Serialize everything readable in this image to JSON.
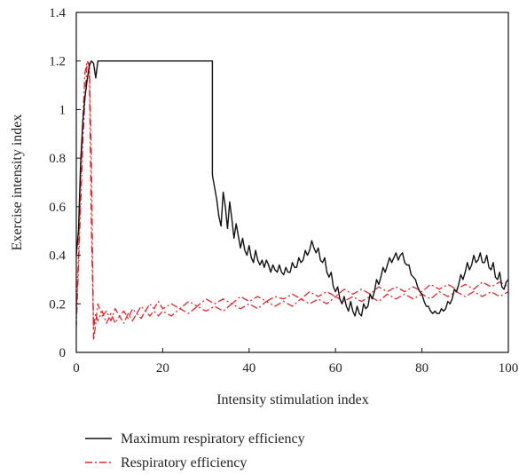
{
  "chart_data": {
    "type": "line",
    "xlabel": "Intensity stimulation index",
    "ylabel": "Exercise intensity index",
    "xlim": [
      0,
      100
    ],
    "ylim": [
      0,
      1.4
    ],
    "xticks": [
      "0",
      "20",
      "40",
      "60",
      "80",
      "100"
    ],
    "yticks": [
      "0",
      "0.2",
      "0.4",
      "0.6",
      "0.8",
      "1",
      "1.2",
      "1.4"
    ],
    "grid": false,
    "legend_position": "bottom",
    "series": [
      {
        "name": "Maximum respiratory efficiency",
        "color": "#111111",
        "style": "solid",
        "points": [
          [
            0,
            0.4
          ],
          [
            0.5,
            0.5
          ],
          [
            1,
            0.78
          ],
          [
            1.5,
            0.95
          ],
          [
            2,
            1.05
          ],
          [
            2.5,
            1.12
          ],
          [
            3,
            1.18
          ],
          [
            3.5,
            1.2
          ],
          [
            4,
            1.19
          ],
          [
            4.5,
            1.13
          ],
          [
            5,
            1.2
          ],
          [
            31.5,
            1.2
          ],
          [
            31.5,
            0.73
          ],
          [
            32,
            0.68
          ],
          [
            32.5,
            0.63
          ],
          [
            33,
            0.56
          ],
          [
            33.5,
            0.52
          ],
          [
            34,
            0.66
          ],
          [
            34.5,
            0.6
          ],
          [
            35,
            0.51
          ],
          [
            35.5,
            0.62
          ],
          [
            36,
            0.55
          ],
          [
            36.5,
            0.47
          ],
          [
            37,
            0.53
          ],
          [
            37.5,
            0.48
          ],
          [
            38,
            0.43
          ],
          [
            38.5,
            0.47
          ],
          [
            39,
            0.42
          ],
          [
            39.5,
            0.4
          ],
          [
            40,
            0.44
          ],
          [
            40.5,
            0.39
          ],
          [
            41,
            0.37
          ],
          [
            41.5,
            0.42
          ],
          [
            42,
            0.38
          ],
          [
            42.5,
            0.36
          ],
          [
            43,
            0.38
          ],
          [
            43.5,
            0.35
          ],
          [
            44,
            0.38
          ],
          [
            44.5,
            0.36
          ],
          [
            45,
            0.33
          ],
          [
            45.5,
            0.36
          ],
          [
            46,
            0.34
          ],
          [
            46.5,
            0.33
          ],
          [
            47,
            0.36
          ],
          [
            47.5,
            0.33
          ],
          [
            48,
            0.32
          ],
          [
            48.5,
            0.35
          ],
          [
            49,
            0.33
          ],
          [
            49.5,
            0.33
          ],
          [
            50,
            0.37
          ],
          [
            50.5,
            0.35
          ],
          [
            51,
            0.35
          ],
          [
            51.5,
            0.39
          ],
          [
            52,
            0.37
          ],
          [
            52.5,
            0.38
          ],
          [
            53,
            0.42
          ],
          [
            53.5,
            0.4
          ],
          [
            54,
            0.42
          ],
          [
            54.5,
            0.46
          ],
          [
            55,
            0.43
          ],
          [
            55.5,
            0.41
          ],
          [
            56,
            0.43
          ],
          [
            56.5,
            0.38
          ],
          [
            57,
            0.37
          ],
          [
            57.5,
            0.39
          ],
          [
            58,
            0.33
          ],
          [
            58.5,
            0.31
          ],
          [
            59,
            0.33
          ],
          [
            59.5,
            0.27
          ],
          [
            60,
            0.25
          ],
          [
            60.5,
            0.27
          ],
          [
            61,
            0.22
          ],
          [
            61.5,
            0.2
          ],
          [
            62,
            0.23
          ],
          [
            62.5,
            0.19
          ],
          [
            63,
            0.17
          ],
          [
            63.5,
            0.21
          ],
          [
            64,
            0.17
          ],
          [
            64.5,
            0.15
          ],
          [
            65,
            0.19
          ],
          [
            65.5,
            0.16
          ],
          [
            66,
            0.15
          ],
          [
            66.5,
            0.2
          ],
          [
            67,
            0.18
          ],
          [
            67.5,
            0.19
          ],
          [
            68,
            0.24
          ],
          [
            68.5,
            0.22
          ],
          [
            69,
            0.25
          ],
          [
            69.5,
            0.3
          ],
          [
            70,
            0.28
          ],
          [
            70.5,
            0.31
          ],
          [
            71,
            0.35
          ],
          [
            71.5,
            0.33
          ],
          [
            72,
            0.36
          ],
          [
            72.5,
            0.39
          ],
          [
            73,
            0.37
          ],
          [
            73.5,
            0.39
          ],
          [
            74,
            0.41
          ],
          [
            74.5,
            0.38
          ],
          [
            75,
            0.4
          ],
          [
            75.5,
            0.41
          ],
          [
            76,
            0.37
          ],
          [
            76.5,
            0.36
          ],
          [
            77,
            0.36
          ],
          [
            77.5,
            0.32
          ],
          [
            78,
            0.31
          ],
          [
            78.5,
            0.3
          ],
          [
            79,
            0.27
          ],
          [
            79.5,
            0.25
          ],
          [
            80,
            0.24
          ],
          [
            80.5,
            0.21
          ],
          [
            81,
            0.19
          ],
          [
            81.5,
            0.19
          ],
          [
            82,
            0.17
          ],
          [
            82.5,
            0.16
          ],
          [
            83,
            0.17
          ],
          [
            83.5,
            0.16
          ],
          [
            84,
            0.16
          ],
          [
            84.5,
            0.18
          ],
          [
            85,
            0.17
          ],
          [
            85.5,
            0.18
          ],
          [
            86,
            0.21
          ],
          [
            86.5,
            0.2
          ],
          [
            87,
            0.22
          ],
          [
            87.5,
            0.26
          ],
          [
            88,
            0.25
          ],
          [
            88.5,
            0.28
          ],
          [
            89,
            0.32
          ],
          [
            89.5,
            0.3
          ],
          [
            90,
            0.33
          ],
          [
            90.5,
            0.37
          ],
          [
            91,
            0.34
          ],
          [
            91.5,
            0.36
          ],
          [
            92,
            0.4
          ],
          [
            92.5,
            0.37
          ],
          [
            93,
            0.38
          ],
          [
            93.5,
            0.41
          ],
          [
            94,
            0.37
          ],
          [
            94.5,
            0.37
          ],
          [
            95,
            0.4
          ],
          [
            95.5,
            0.35
          ],
          [
            96,
            0.34
          ],
          [
            96.5,
            0.37
          ],
          [
            97,
            0.31
          ],
          [
            97.5,
            0.3
          ],
          [
            98,
            0.33
          ],
          [
            98.5,
            0.27
          ],
          [
            99,
            0.26
          ],
          [
            99.5,
            0.29
          ],
          [
            100,
            0.3
          ]
        ]
      },
      {
        "name": "Respiratory efficiency",
        "color": "#e0262a",
        "style": "dashdot",
        "points": [
          [
            0,
            0.1
          ],
          [
            0.5,
            0.35
          ],
          [
            1,
            0.6
          ],
          [
            1.5,
            0.85
          ],
          [
            2,
            1.05
          ],
          [
            2.5,
            1.19
          ],
          [
            3,
            1.2
          ],
          [
            3.5,
            0.8
          ],
          [
            4,
            0.05
          ],
          [
            4.5,
            0.12
          ],
          [
            5,
            0.2
          ],
          [
            6,
            0.15
          ],
          [
            7,
            0.17
          ],
          [
            8,
            0.13
          ],
          [
            9,
            0.18
          ],
          [
            10,
            0.15
          ],
          [
            11,
            0.17
          ],
          [
            12,
            0.14
          ],
          [
            13,
            0.18
          ],
          [
            14,
            0.16
          ],
          [
            15,
            0.19
          ],
          [
            16,
            0.17
          ],
          [
            17,
            0.2
          ],
          [
            18,
            0.18
          ],
          [
            19,
            0.21
          ],
          [
            20,
            0.18
          ],
          [
            22,
            0.2
          ],
          [
            24,
            0.18
          ],
          [
            26,
            0.21
          ],
          [
            28,
            0.19
          ],
          [
            30,
            0.22
          ],
          [
            32,
            0.2
          ],
          [
            34,
            0.22
          ],
          [
            36,
            0.2
          ],
          [
            38,
            0.23
          ],
          [
            40,
            0.21
          ],
          [
            42,
            0.23
          ],
          [
            44,
            0.21
          ],
          [
            46,
            0.23
          ],
          [
            48,
            0.22
          ],
          [
            50,
            0.24
          ],
          [
            52,
            0.22
          ],
          [
            54,
            0.25
          ],
          [
            56,
            0.23
          ],
          [
            58,
            0.25
          ],
          [
            60,
            0.23
          ],
          [
            62,
            0.26
          ],
          [
            64,
            0.24
          ],
          [
            66,
            0.26
          ],
          [
            68,
            0.24
          ],
          [
            70,
            0.27
          ],
          [
            72,
            0.25
          ],
          [
            74,
            0.27
          ],
          [
            76,
            0.25
          ],
          [
            78,
            0.27
          ],
          [
            80,
            0.25
          ],
          [
            82,
            0.28
          ],
          [
            84,
            0.26
          ],
          [
            86,
            0.28
          ],
          [
            88,
            0.26
          ],
          [
            90,
            0.28
          ],
          [
            92,
            0.26
          ],
          [
            94,
            0.29
          ],
          [
            96,
            0.27
          ],
          [
            98,
            0.29
          ],
          [
            100,
            0.27
          ]
        ]
      },
      {
        "name": "",
        "color": "#e0262a",
        "style": "dashdot",
        "points": [
          [
            0,
            0.15
          ],
          [
            0.5,
            0.4
          ],
          [
            1,
            0.7
          ],
          [
            1.5,
            0.95
          ],
          [
            2,
            1.15
          ],
          [
            2.5,
            1.2
          ],
          [
            3,
            1.18
          ],
          [
            3.5,
            0.5
          ],
          [
            4,
            0.1
          ],
          [
            4.5,
            0.16
          ],
          [
            5,
            0.13
          ],
          [
            6,
            0.17
          ],
          [
            7,
            0.12
          ],
          [
            8,
            0.16
          ],
          [
            9,
            0.12
          ],
          [
            10,
            0.15
          ],
          [
            11,
            0.12
          ],
          [
            12,
            0.16
          ],
          [
            13,
            0.13
          ],
          [
            14,
            0.16
          ],
          [
            15,
            0.14
          ],
          [
            16,
            0.17
          ],
          [
            17,
            0.15
          ],
          [
            18,
            0.17
          ],
          [
            19,
            0.15
          ],
          [
            20,
            0.17
          ],
          [
            22,
            0.15
          ],
          [
            24,
            0.18
          ],
          [
            26,
            0.16
          ],
          [
            28,
            0.19
          ],
          [
            30,
            0.17
          ],
          [
            32,
            0.19
          ],
          [
            34,
            0.17
          ],
          [
            36,
            0.2
          ],
          [
            38,
            0.18
          ],
          [
            40,
            0.2
          ],
          [
            42,
            0.18
          ],
          [
            44,
            0.21
          ],
          [
            46,
            0.19
          ],
          [
            48,
            0.21
          ],
          [
            50,
            0.19
          ],
          [
            52,
            0.22
          ],
          [
            54,
            0.2
          ],
          [
            56,
            0.22
          ],
          [
            58,
            0.2
          ],
          [
            60,
            0.23
          ],
          [
            62,
            0.21
          ],
          [
            64,
            0.23
          ],
          [
            66,
            0.21
          ],
          [
            68,
            0.23
          ],
          [
            70,
            0.21
          ],
          [
            72,
            0.24
          ],
          [
            74,
            0.22
          ],
          [
            76,
            0.24
          ],
          [
            78,
            0.22
          ],
          [
            80,
            0.24
          ],
          [
            82,
            0.22
          ],
          [
            84,
            0.25
          ],
          [
            86,
            0.23
          ],
          [
            88,
            0.25
          ],
          [
            90,
            0.23
          ],
          [
            92,
            0.25
          ],
          [
            94,
            0.23
          ],
          [
            96,
            0.25
          ],
          [
            98,
            0.23
          ],
          [
            100,
            0.25
          ]
        ]
      }
    ]
  }
}
